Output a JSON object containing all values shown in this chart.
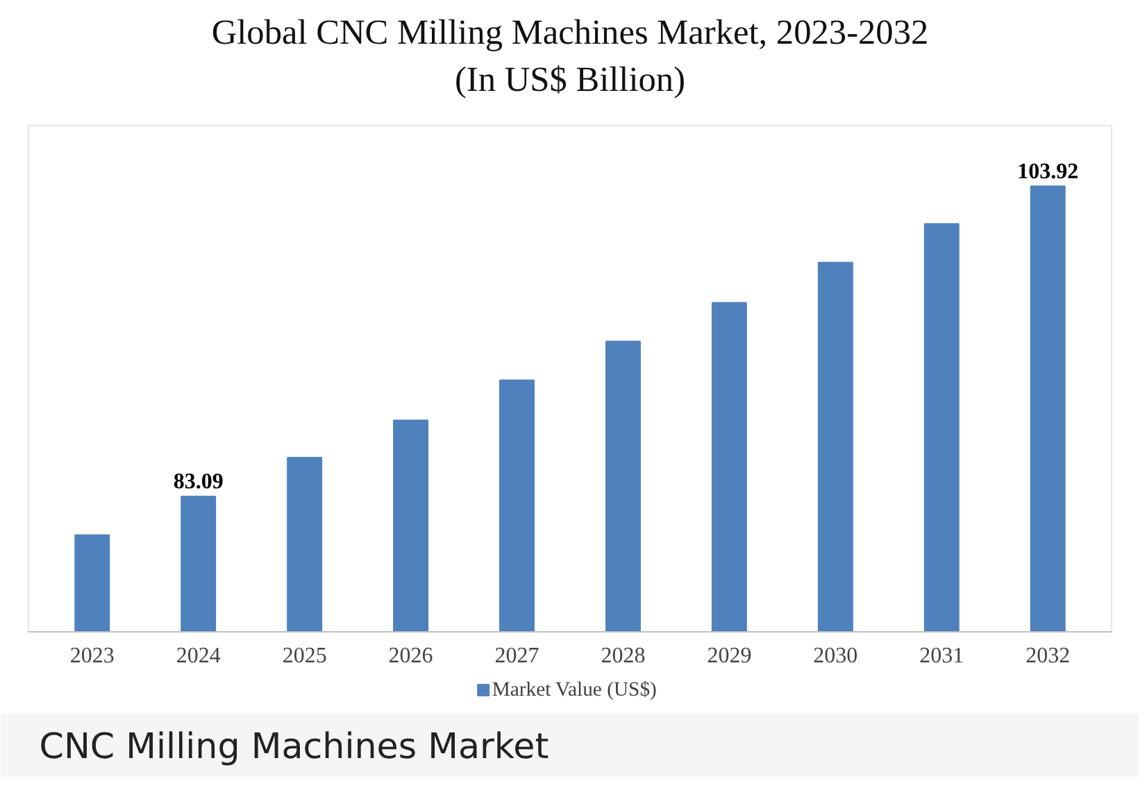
{
  "chart_data": {
    "type": "bar",
    "title": "Global CNC Milling Machines Market, 2023-2032\n(In US$ Billion)",
    "categories": [
      "2023",
      "2024",
      "2025",
      "2026",
      "2027",
      "2028",
      "2029",
      "2030",
      "2031",
      "2032"
    ],
    "ylim": [
      74,
      108
    ],
    "tick_labels": "x",
    "series": [
      {
        "name": "Market Value (US$)",
        "color": "#4f81bd",
        "values": [
          80.5,
          83.09,
          85.7,
          88.2,
          90.9,
          93.5,
          96.1,
          98.8,
          101.4,
          103.92
        ],
        "value_labels": [
          null,
          "83.09",
          null,
          null,
          null,
          null,
          null,
          null,
          null,
          "103.92"
        ]
      }
    ],
    "legend": "bottom",
    "grid": false,
    "annotations": [
      "CNC Milling Machines Market"
    ]
  }
}
